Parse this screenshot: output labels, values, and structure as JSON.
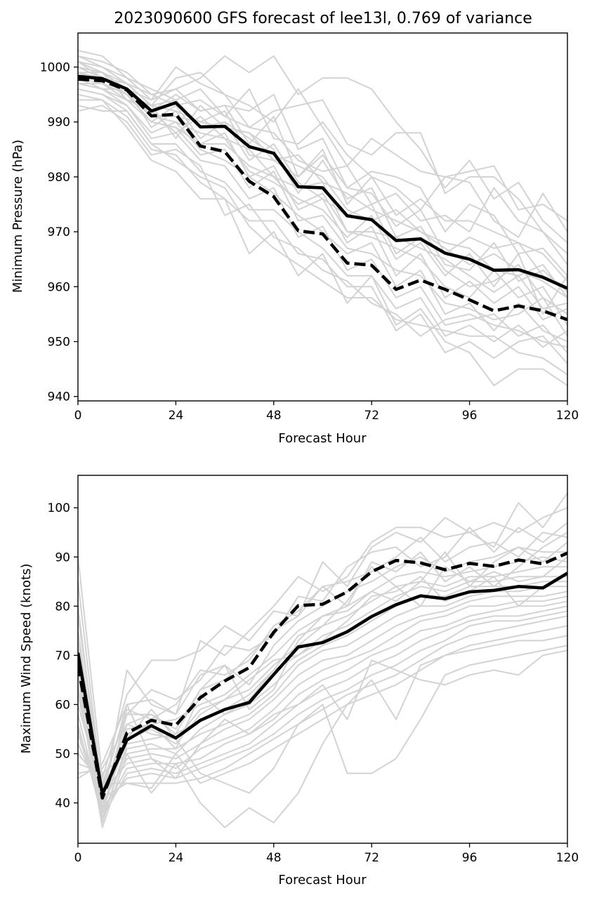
{
  "figure_title": "2023090600 GFS forecast of lee13l, 0.769 of variance",
  "chart_data": [
    {
      "type": "line",
      "xlabel": "Forecast Hour",
      "ylabel": "Minimum Pressure (hPa)",
      "xlim": [
        0,
        120
      ],
      "ylim": [
        939.2,
        1006.2
      ],
      "xticks": [
        0,
        24,
        48,
        72,
        96,
        120
      ],
      "yticks": [
        940,
        950,
        960,
        970,
        980,
        990,
        1000
      ],
      "x": [
        0,
        6,
        12,
        18,
        24,
        30,
        36,
        42,
        48,
        54,
        60,
        66,
        72,
        78,
        84,
        90,
        96,
        102,
        108,
        114,
        120
      ],
      "series": [
        {
          "style": "solid",
          "values": [
            998.3,
            997.9,
            996.0,
            992.0,
            993.5,
            989.1,
            989.2,
            985.5,
            984.3,
            978.2,
            978.0,
            972.9,
            972.2,
            968.4,
            968.7,
            966.1,
            965.0,
            963.0,
            963.1,
            961.7,
            959.7
          ]
        },
        {
          "style": "dashed",
          "values": [
            997.8,
            997.5,
            995.8,
            991.1,
            991.4,
            985.6,
            984.6,
            979.2,
            976.4,
            970.2,
            969.6,
            964.3,
            963.9,
            959.5,
            961.2,
            959.5,
            957.6,
            955.6,
            956.5,
            955.6,
            954.0
          ]
        }
      ],
      "ensemble": [
        [
          1003,
          1002,
          998,
          994,
          1000,
          997,
          995,
          989,
          992,
          993,
          994,
          986,
          984,
          988,
          988,
          977,
          980,
          980,
          976,
          970,
          966
        ],
        [
          1002,
          1001,
          999,
          995,
          996,
          998,
          1002,
          999,
          1002,
          995,
          998,
          998,
          996,
          990,
          985,
          978,
          983,
          976,
          979,
          972,
          968
        ],
        [
          1002,
          1000,
          997,
          993,
          998,
          999,
          995,
          993,
          990,
          996,
          989,
          982,
          987,
          984,
          981,
          980,
          981,
          982,
          974,
          975,
          972
        ],
        [
          1001,
          1000,
          998,
          996,
          994,
          996,
          991,
          996,
          987,
          986,
          990,
          984,
          980,
          978,
          974,
          980,
          979,
          972,
          969,
          977,
          970
        ],
        [
          1001,
          999,
          996,
          994,
          996,
          992,
          993,
          992,
          995,
          985,
          987,
          978,
          981,
          980,
          978,
          970,
          975,
          973,
          966,
          967,
          962
        ],
        [
          1000,
          999,
          997,
          995,
          993,
          994,
          991,
          989,
          988,
          983,
          981,
          982,
          975,
          977,
          972,
          973,
          970,
          978,
          972,
          970,
          964
        ],
        [
          1000,
          998,
          996,
          992,
          995,
          992,
          993,
          986,
          991,
          980,
          984,
          978,
          977,
          971,
          974,
          966,
          969,
          967,
          968,
          962,
          960
        ],
        [
          999,
          999,
          994,
          993,
          994,
          989,
          990,
          987,
          984,
          982,
          980,
          974,
          972,
          974,
          970,
          968,
          967,
          963,
          962,
          964,
          958
        ],
        [
          999,
          998,
          997,
          993,
          992,
          990,
          989,
          988,
          985,
          977,
          983,
          976,
          978,
          969,
          967,
          965,
          962,
          959,
          962,
          956,
          957
        ],
        [
          999,
          997,
          995,
          990,
          993,
          987,
          990,
          983,
          986,
          979,
          976,
          973,
          975,
          966,
          969,
          963,
          960,
          961,
          964,
          958,
          955
        ],
        [
          998,
          998,
          995,
          991,
          990,
          988,
          987,
          985,
          980,
          978,
          979,
          970,
          969,
          967,
          965,
          960,
          958,
          963,
          958,
          960,
          953
        ],
        [
          998,
          996,
          996,
          989,
          992,
          986,
          988,
          980,
          982,
          974,
          976,
          968,
          971,
          962,
          966,
          958,
          961,
          957,
          960,
          954,
          956
        ],
        [
          997,
          997,
          994,
          990,
          989,
          984,
          985,
          978,
          981,
          972,
          973,
          967,
          966,
          963,
          962,
          957,
          956,
          954,
          955,
          958,
          951
        ],
        [
          997,
          996,
          993,
          988,
          990,
          985,
          983,
          980,
          977,
          973,
          970,
          966,
          968,
          960,
          963,
          955,
          957,
          952,
          957,
          952,
          950
        ],
        [
          996,
          995,
          993,
          987,
          988,
          983,
          982,
          976,
          978,
          969,
          971,
          963,
          965,
          958,
          960,
          953,
          954,
          955,
          951,
          953,
          948
        ],
        [
          996,
          995,
          992,
          986,
          986,
          981,
          979,
          974,
          974,
          970,
          967,
          962,
          962,
          956,
          958,
          951,
          953,
          950,
          953,
          949,
          952
        ],
        [
          995,
          994,
          991,
          985,
          984,
          979,
          976,
          972,
          972,
          966,
          965,
          960,
          960,
          952,
          955,
          948,
          950,
          947,
          950,
          951,
          946
        ],
        [
          994,
          994,
          989,
          983,
          981,
          976,
          976,
          966,
          970,
          962,
          966,
          957,
          962,
          953,
          956,
          950,
          948,
          942,
          945,
          945,
          942
        ],
        [
          993,
          992,
          992,
          986,
          983,
          980,
          978,
          971,
          967,
          964,
          961,
          958,
          958,
          954,
          953,
          952,
          951,
          951,
          948,
          947,
          944
        ],
        [
          992,
          993,
          990,
          984,
          985,
          982,
          973,
          975,
          969,
          967,
          963,
          961,
          957,
          955,
          951,
          954,
          955,
          953,
          952,
          950,
          949
        ],
        [
          1000,
          998,
          996,
          991,
          991,
          990,
          992,
          984,
          983,
          980,
          985,
          975,
          980,
          973,
          976,
          972,
          972,
          970,
          968,
          966,
          961
        ],
        [
          998,
          997,
          995,
          990,
          989,
          986,
          986,
          982,
          980,
          975,
          977,
          970,
          970,
          969,
          971,
          964,
          963,
          968,
          961,
          963,
          959
        ],
        [
          997,
          996,
          994,
          992,
          988,
          991,
          987,
          981,
          979,
          976,
          974,
          969,
          973,
          965,
          968,
          962,
          966,
          960,
          966,
          955,
          962
        ],
        [
          1001,
          998,
          995,
          993,
          987,
          993,
          989,
          988,
          983,
          984,
          979,
          977,
          974,
          972,
          970,
          967,
          964,
          966,
          963,
          961,
          958
        ]
      ]
    },
    {
      "type": "line",
      "xlabel": "Forecast Hour",
      "ylabel": "Maximum Wind Speed (knots)",
      "xlim": [
        0,
        120
      ],
      "ylim": [
        31.8,
        106.6
      ],
      "xticks": [
        0,
        24,
        48,
        72,
        96,
        120
      ],
      "yticks": [
        40,
        50,
        60,
        70,
        80,
        90,
        100
      ],
      "x": [
        0,
        6,
        12,
        18,
        24,
        30,
        36,
        42,
        48,
        54,
        60,
        66,
        72,
        78,
        84,
        90,
        96,
        102,
        108,
        114,
        120
      ],
      "series": [
        {
          "style": "solid",
          "values": [
            70.5,
            41.8,
            52.8,
            55.7,
            53.2,
            56.8,
            59.0,
            60.4,
            66.1,
            71.7,
            72.6,
            74.8,
            77.9,
            80.3,
            82.1,
            81.5,
            82.9,
            83.2,
            84.0,
            83.7,
            86.7
          ]
        },
        {
          "style": "dashed",
          "values": [
            68.0,
            41.0,
            54.2,
            56.8,
            55.8,
            61.4,
            64.8,
            67.5,
            74.7,
            80.1,
            80.4,
            82.9,
            87.0,
            89.3,
            88.8,
            87.4,
            88.7,
            88.1,
            89.4,
            88.6,
            90.8
          ]
        }
      ],
      "ensemble": [
        [
          90,
          45,
          62,
          69,
          69,
          71,
          76,
          73,
          79,
          78,
          89,
          84,
          92,
          95,
          93,
          98,
          95,
          92,
          101,
          96,
          103
        ],
        [
          85,
          42,
          60,
          61,
          58,
          73,
          70,
          75,
          80,
          86,
          83,
          86,
          93,
          96,
          96,
          94,
          95,
          97,
          95,
          98,
          100
        ],
        [
          80,
          40,
          58,
          63,
          61,
          65,
          72,
          71,
          74,
          82,
          81,
          88,
          91,
          92,
          88,
          90,
          96,
          91,
          96,
          93,
          97
        ],
        [
          78,
          43,
          59,
          57,
          60,
          67,
          66,
          69,
          76,
          79,
          84,
          85,
          87,
          90,
          94,
          89,
          92,
          93,
          90,
          95,
          94
        ],
        [
          75,
          41,
          56,
          58,
          55,
          63,
          68,
          64,
          72,
          77,
          80,
          83,
          85,
          88,
          90,
          87,
          89,
          90,
          92,
          91,
          91
        ],
        [
          72,
          38,
          55,
          56,
          57,
          60,
          62,
          66,
          70,
          75,
          78,
          80,
          83,
          86,
          87,
          86,
          87,
          88,
          89,
          90,
          89
        ],
        [
          70,
          39,
          53,
          55,
          52,
          58,
          61,
          63,
          68,
          72,
          76,
          78,
          81,
          84,
          85,
          84,
          86,
          86,
          87,
          88,
          88
        ],
        [
          68,
          36,
          52,
          53,
          54,
          57,
          59,
          62,
          67,
          70,
          74,
          76,
          79,
          82,
          84,
          83,
          85,
          85,
          86,
          86,
          86
        ],
        [
          66,
          37,
          51,
          52,
          50,
          55,
          58,
          60,
          64,
          69,
          72,
          74,
          77,
          80,
          82,
          82,
          84,
          84,
          84,
          85,
          85
        ],
        [
          64,
          35,
          50,
          51,
          51,
          54,
          56,
          58,
          62,
          68,
          71,
          72,
          75,
          78,
          80,
          80,
          82,
          83,
          83,
          84,
          84
        ],
        [
          62,
          40,
          49,
          50,
          49,
          52,
          55,
          57,
          61,
          66,
          69,
          70,
          73,
          76,
          78,
          79,
          81,
          82,
          82,
          82,
          83
        ],
        [
          60,
          42,
          48,
          49,
          47,
          51,
          53,
          55,
          59,
          64,
          67,
          69,
          71,
          74,
          77,
          78,
          80,
          80,
          81,
          81,
          82
        ],
        [
          58,
          38,
          47,
          48,
          48,
          49,
          52,
          54,
          57,
          62,
          65,
          67,
          70,
          72,
          75,
          76,
          78,
          79,
          80,
          80,
          81
        ],
        [
          56,
          37,
          46,
          47,
          46,
          48,
          50,
          52,
          56,
          60,
          63,
          65,
          68,
          70,
          73,
          75,
          77,
          78,
          78,
          79,
          80
        ],
        [
          54,
          39,
          45,
          46,
          45,
          47,
          49,
          51,
          54,
          58,
          61,
          63,
          66,
          68,
          71,
          73,
          76,
          77,
          77,
          78,
          79
        ],
        [
          52,
          41,
          44,
          44,
          44,
          45,
          47,
          50,
          53,
          56,
          59,
          62,
          64,
          66,
          69,
          72,
          74,
          75,
          76,
          77,
          78
        ],
        [
          50,
          44,
          44,
          43,
          50,
          44,
          46,
          48,
          51,
          54,
          57,
          60,
          62,
          64,
          67,
          70,
          72,
          73,
          74,
          75,
          76
        ],
        [
          48,
          46,
          50,
          42,
          48,
          40,
          35,
          39,
          36,
          42,
          52,
          60,
          65,
          57,
          68,
          70,
          71,
          72,
          73,
          73,
          74
        ],
        [
          46,
          47,
          56,
          54,
          53,
          46,
          44,
          42,
          47,
          56,
          60,
          46,
          46,
          49,
          57,
          66,
          68,
          69,
          70,
          71,
          72
        ],
        [
          45,
          48,
          60,
          49,
          45,
          52,
          57,
          54,
          58,
          60,
          64,
          57,
          69,
          67,
          65,
          64,
          66,
          67,
          66,
          70,
          71
        ],
        [
          55,
          40,
          67,
          60,
          58,
          66,
          68,
          59,
          63,
          73,
          78,
          79,
          83,
          81,
          85,
          91,
          84,
          89,
          92,
          89,
          93
        ],
        [
          63,
          44,
          58,
          58,
          54,
          63,
          65,
          70,
          75,
          78,
          84,
          80,
          89,
          87,
          91,
          85,
          88,
          84,
          88,
          92,
          95
        ],
        [
          74,
          38,
          54,
          56,
          51,
          62,
          58,
          61,
          67,
          74,
          76,
          81,
          88,
          84,
          80,
          88,
          85,
          87,
          85,
          86,
          90
        ],
        [
          67,
          43,
          53,
          59,
          53,
          59,
          61,
          65,
          69,
          70,
          73,
          77,
          82,
          83,
          86,
          81,
          83,
          86,
          80,
          84,
          87
        ]
      ]
    }
  ]
}
